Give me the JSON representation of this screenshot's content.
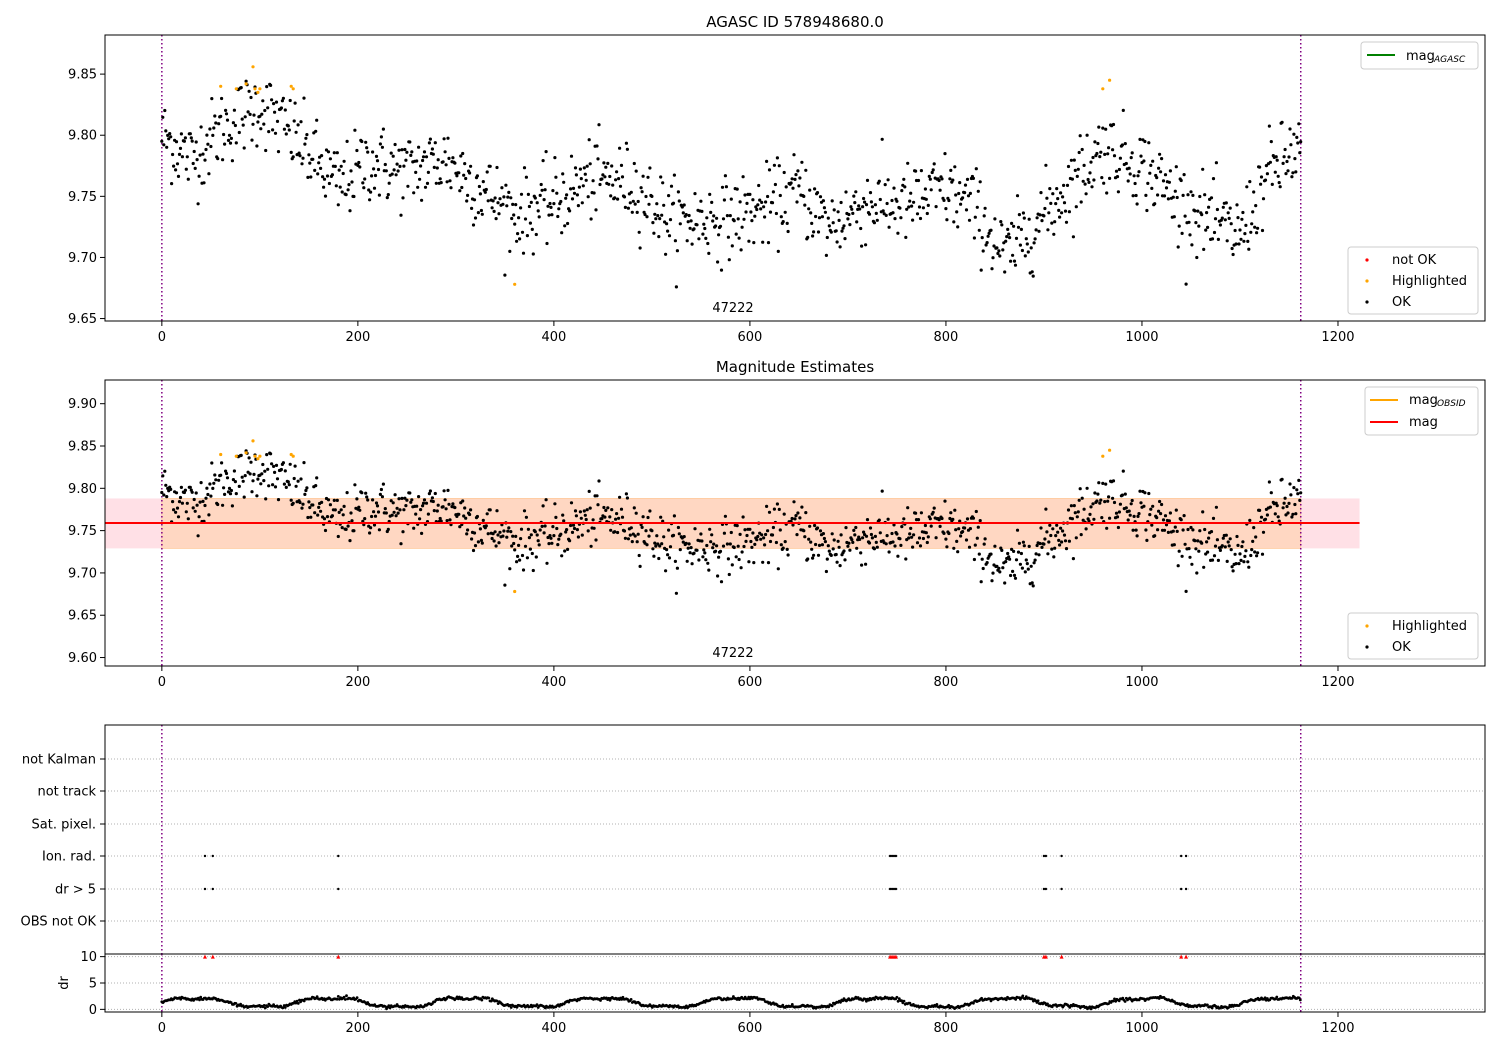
{
  "colors": {
    "ok": "#000000",
    "highlighted": "#ffa500",
    "not_ok": "#ff0000",
    "mag_agasc": "#008000",
    "mag_obsid": "#ffa500",
    "mag": "#ff0000",
    "band_obsid": "#ffd7c2",
    "band_mag": "#ffe0e6",
    "obs_boundary": "#800080",
    "grid": "#b0b0b0"
  },
  "chart_data": [
    {
      "id": "top",
      "type": "scatter",
      "title": "AGASC ID 578948680.0",
      "xlim": [
        -58,
        1350
      ],
      "ylim": [
        9.648,
        9.882
      ],
      "xticks": [
        {
          "v": 0,
          "label": "0"
        },
        {
          "v": 200,
          "label": "200"
        },
        {
          "v": 400,
          "label": "400"
        },
        {
          "v": 600,
          "label": "600"
        },
        {
          "v": 800,
          "label": "800"
        },
        {
          "v": 1000,
          "label": "1000"
        },
        {
          "v": 1200,
          "label": "1200"
        }
      ],
      "yticks": [
        {
          "v": 9.65,
          "label": "9.65"
        },
        {
          "v": 9.7,
          "label": "9.70"
        },
        {
          "v": 9.75,
          "label": "9.75"
        },
        {
          "v": 9.8,
          "label": "9.80"
        },
        {
          "v": 9.85,
          "label": "9.85"
        }
      ],
      "obs_boundaries": [
        0,
        1162
      ],
      "obsid_label": {
        "text": "47222",
        "x": 581
      },
      "legend_lines": [
        {
          "label": "mag",
          "sub": "AGASC",
          "color": "#008000"
        }
      ],
      "legend_markers": [
        {
          "label": "not OK",
          "color": "#ff0000"
        },
        {
          "label": "Highlighted",
          "color": "#ffa500"
        },
        {
          "label": "OK",
          "color": "#000000"
        }
      ],
      "highlighted_points": [
        [
          60,
          9.84
        ],
        [
          76,
          9.838
        ],
        [
          86,
          9.842
        ],
        [
          93,
          9.856
        ],
        [
          95,
          9.838
        ],
        [
          98,
          9.835
        ],
        [
          100,
          9.838
        ],
        [
          132,
          9.84
        ],
        [
          134,
          9.838
        ],
        [
          360,
          9.678
        ],
        [
          960,
          9.838
        ],
        [
          967,
          9.845
        ]
      ],
      "not_ok_points": []
    },
    {
      "id": "mid",
      "type": "scatter",
      "title": "Magnitude Estimates",
      "xlim": [
        -58,
        1350
      ],
      "ylim": [
        9.59,
        9.928
      ],
      "xticks": [
        {
          "v": 0,
          "label": "0"
        },
        {
          "v": 200,
          "label": "200"
        },
        {
          "v": 400,
          "label": "400"
        },
        {
          "v": 600,
          "label": "600"
        },
        {
          "v": 800,
          "label": "800"
        },
        {
          "v": 1000,
          "label": "1000"
        },
        {
          "v": 1200,
          "label": "1200"
        }
      ],
      "yticks": [
        {
          "v": 9.6,
          "label": "9.60"
        },
        {
          "v": 9.65,
          "label": "9.65"
        },
        {
          "v": 9.7,
          "label": "9.70"
        },
        {
          "v": 9.75,
          "label": "9.75"
        },
        {
          "v": 9.8,
          "label": "9.80"
        },
        {
          "v": 9.85,
          "label": "9.85"
        },
        {
          "v": 9.9,
          "label": "9.90"
        }
      ],
      "obs_boundaries": [
        0,
        1162
      ],
      "obsid_label": {
        "text": "47222",
        "x": 581
      },
      "mag_line": {
        "value": 9.759,
        "x0": -58,
        "x1": 1222
      },
      "mag_band": {
        "low": 9.729,
        "high": 9.788,
        "x0": -58,
        "x1": 1222
      },
      "obsid_band": {
        "low": 9.729,
        "high": 9.788,
        "x0": 0,
        "x1": 1162
      },
      "legend_lines": [
        {
          "label": "mag",
          "sub": "OBSID",
          "color": "#ffa500"
        },
        {
          "label": "mag",
          "sub": "",
          "color": "#ff0000"
        }
      ],
      "legend_markers": [
        {
          "label": "Highlighted",
          "color": "#ffa500"
        },
        {
          "label": "OK",
          "color": "#000000"
        }
      ],
      "highlighted_points": [
        [
          60,
          9.84
        ],
        [
          76,
          9.838
        ],
        [
          86,
          9.842
        ],
        [
          93,
          9.856
        ],
        [
          95,
          9.838
        ],
        [
          98,
          9.835
        ],
        [
          100,
          9.838
        ],
        [
          132,
          9.84
        ],
        [
          134,
          9.838
        ],
        [
          360,
          9.678
        ],
        [
          960,
          9.838
        ],
        [
          967,
          9.845
        ]
      ]
    },
    {
      "id": "flags",
      "type": "scatter",
      "xlim": [
        -58,
        1350
      ],
      "categories": [
        "not Kalman",
        "not track",
        "Sat. pixel.",
        "Ion. rad.",
        "dr > 5",
        "OBS not OK"
      ],
      "obs_boundaries": [
        0,
        1162
      ],
      "flagged_times": [
        44,
        52,
        180,
        743,
        745,
        747,
        749,
        900,
        902,
        918,
        1040,
        1045
      ],
      "ion_rad_times": [
        44,
        52,
        180,
        743,
        745,
        747,
        749,
        900,
        902,
        918,
        1040,
        1045
      ],
      "dr5_times": [
        44,
        52,
        180,
        743,
        745,
        747,
        749,
        900,
        902,
        918,
        1040,
        1045
      ]
    },
    {
      "id": "dr",
      "type": "line",
      "ylabel": "dr",
      "xlim": [
        -58,
        1350
      ],
      "ylim": [
        -0.5,
        10.5
      ],
      "yticks": [
        {
          "v": 0,
          "label": "0"
        },
        {
          "v": 5,
          "label": "5"
        },
        {
          "v": 10,
          "label": "10"
        }
      ],
      "xticks": [
        {
          "v": 0,
          "label": "0"
        },
        {
          "v": 200,
          "label": "200"
        },
        {
          "v": 400,
          "label": "400"
        },
        {
          "v": 600,
          "label": "600"
        },
        {
          "v": 800,
          "label": "800"
        },
        {
          "v": 1000,
          "label": "1000"
        },
        {
          "v": 1200,
          "label": "1200"
        }
      ],
      "obs_boundaries": [
        0,
        1162
      ],
      "clip_value": 10,
      "clipped_times": [
        44,
        52,
        180,
        743,
        745,
        747,
        749,
        900,
        902,
        918,
        1040,
        1045
      ]
    }
  ]
}
